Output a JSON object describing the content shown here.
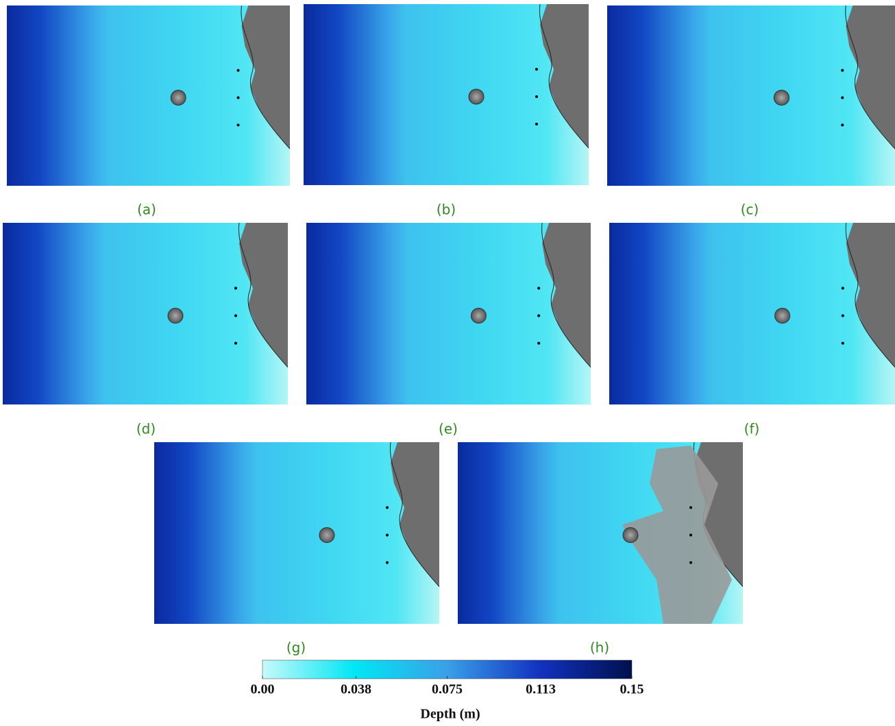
{
  "panels": [
    "(a)",
    "(b)",
    "(c)",
    "(d)",
    "(e)",
    "(f)",
    "(g)",
    "(h)"
  ],
  "colorbar": {
    "title": "Depth (m)",
    "lim": [
      0,
      0.15
    ],
    "ticks": [
      {
        "value": 0,
        "label": "0.00"
      },
      0.038,
      0.075,
      0.113,
      0.15
    ]
  }
}
